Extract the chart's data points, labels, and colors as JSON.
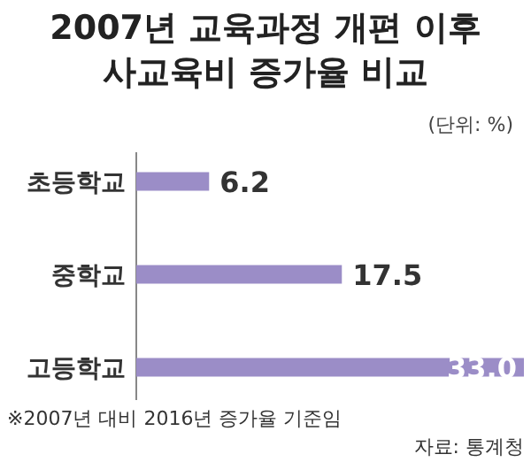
{
  "chart_data": {
    "type": "bar",
    "orientation": "horizontal",
    "title": "2007년 교육과정 개편 이후\n사교육비 증가율 비교",
    "subtitle": "(단위: %)",
    "categories": [
      "초등학교",
      "중학교",
      "고등학교"
    ],
    "values": [
      6.2,
      17.5,
      33.0
    ],
    "value_labels": [
      "6.2",
      "17.5",
      "33.0"
    ],
    "color": "#9b8dc7",
    "annotations": [
      "※2007년 대비 2016년 증가율 기준임",
      "자료: 통계청"
    ]
  }
}
